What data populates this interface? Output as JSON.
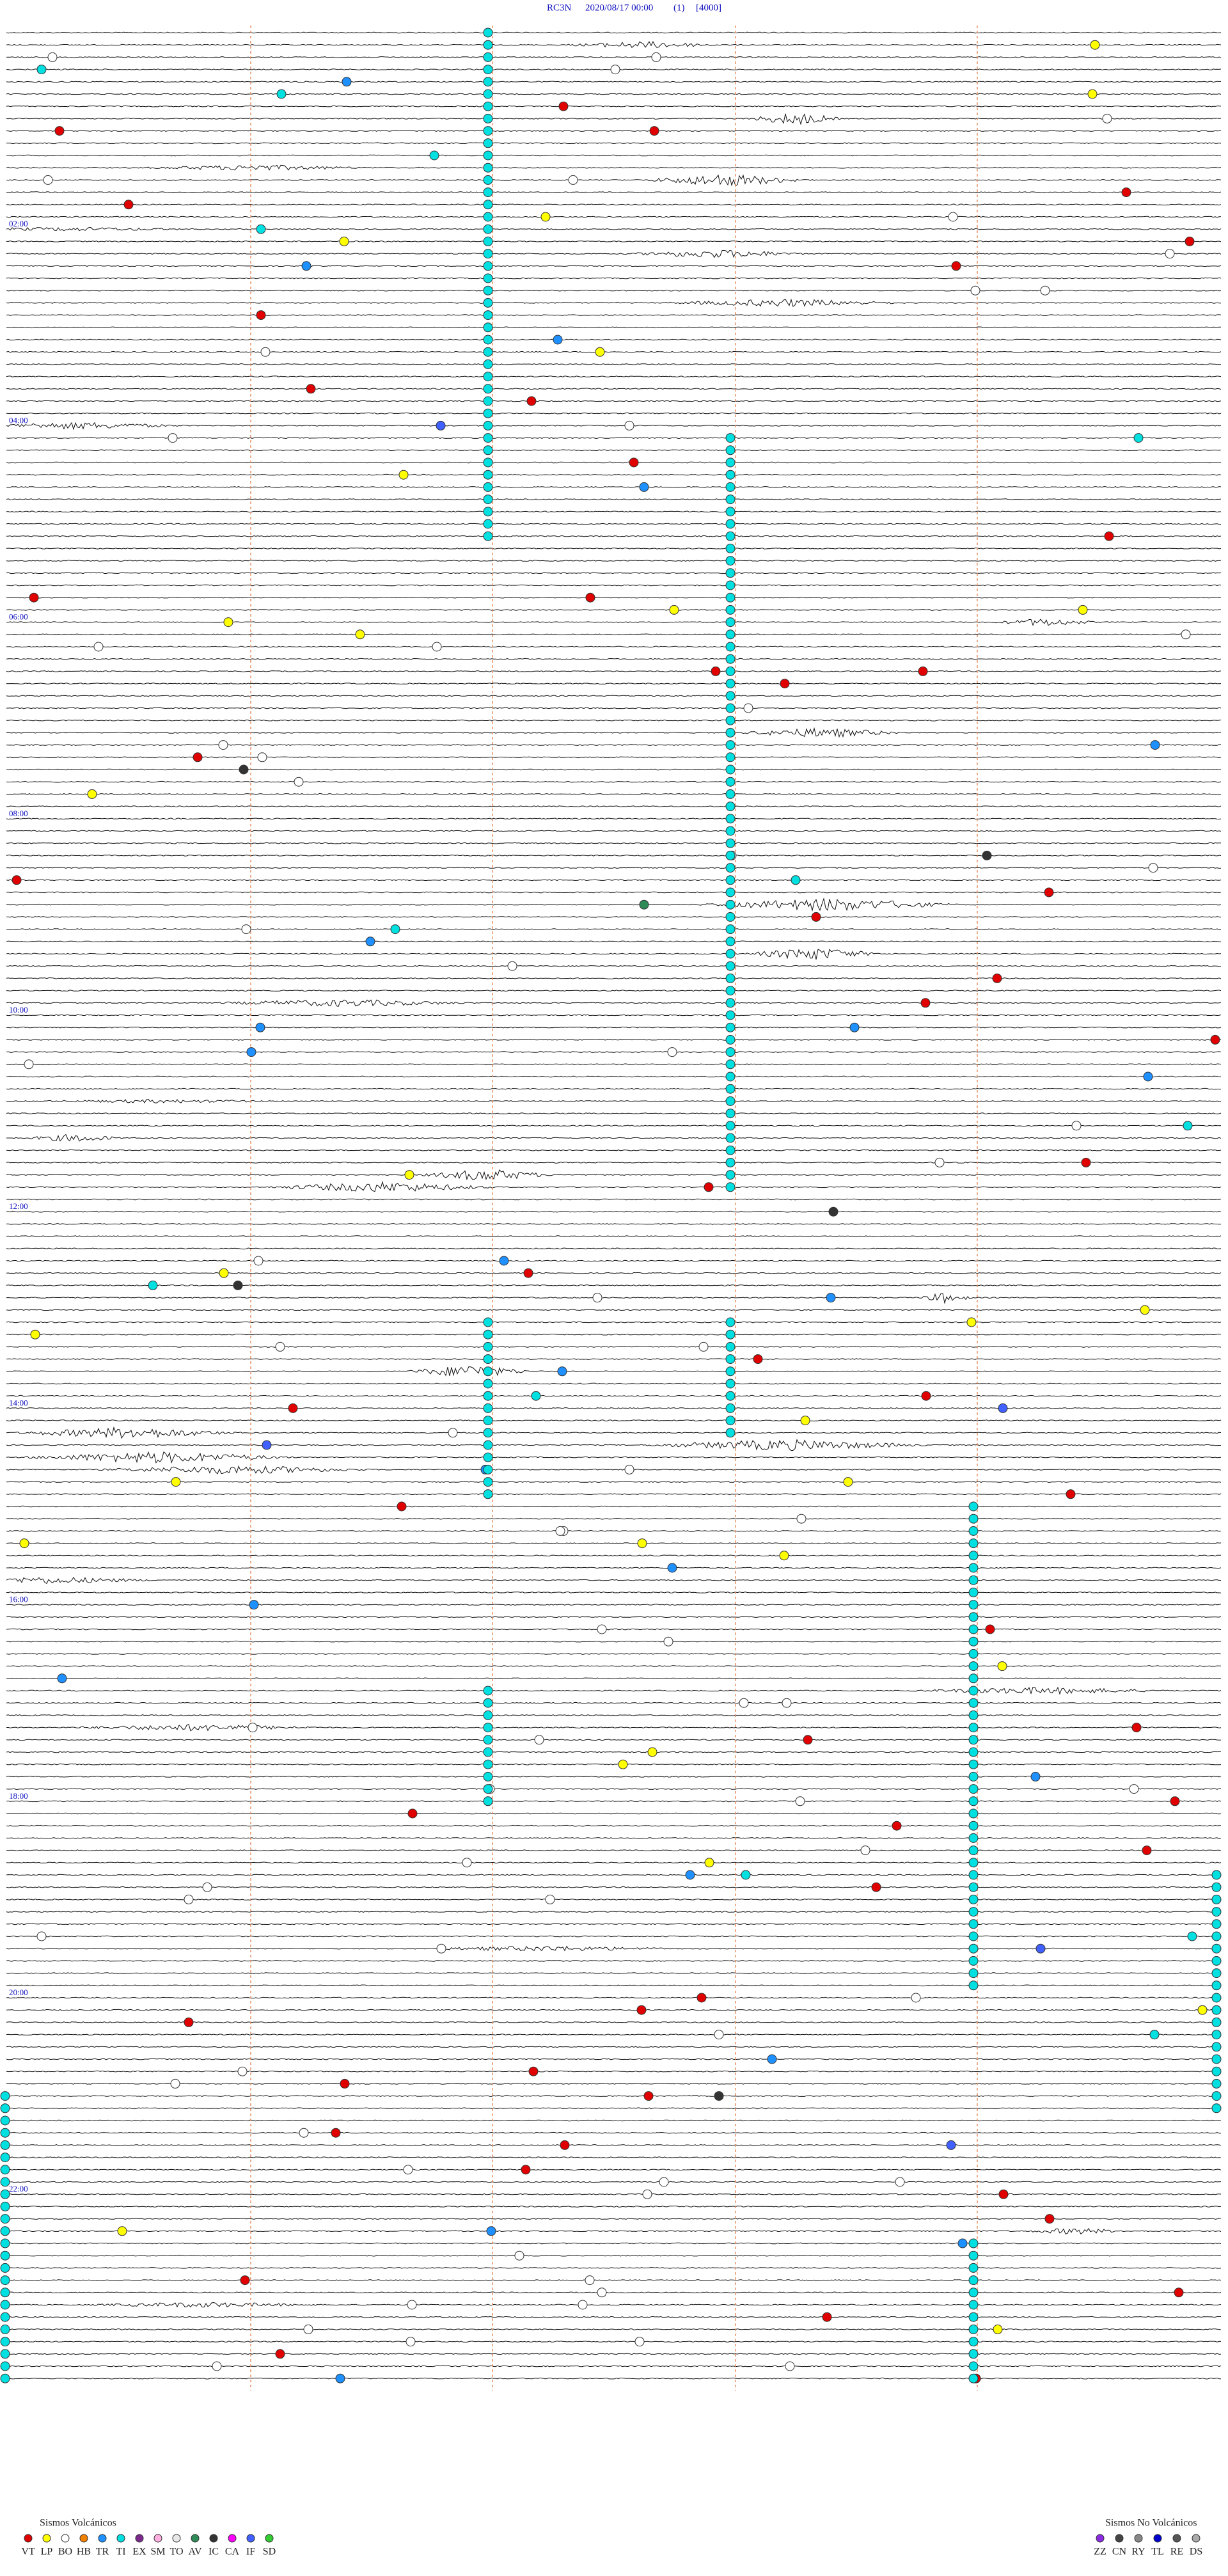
{
  "header": {
    "station": "RC3N",
    "datetime": "2020/08/17 00:00",
    "channel": "(1)",
    "scale": "[4000]"
  },
  "hour_labels": [
    "02:00",
    "04:00",
    "06:00",
    "08:00",
    "10:00",
    "12:00",
    "14:00",
    "16:00",
    "18:00",
    "20:00",
    "22:00"
  ],
  "legend": {
    "volcanic": {
      "title": "Sismos Volcánicos",
      "items": [
        {
          "code": "VT",
          "color": "#e00000"
        },
        {
          "code": "LP",
          "color": "#ffff00"
        },
        {
          "code": "BO",
          "color": "#ffffff"
        },
        {
          "code": "HB",
          "color": "#f08000"
        },
        {
          "code": "TR",
          "color": "#1e90ff"
        },
        {
          "code": "TI",
          "color": "#00e0e0"
        },
        {
          "code": "EX",
          "color": "#7b2a8c"
        },
        {
          "code": "SM",
          "color": "#ffb0e0"
        },
        {
          "code": "TO",
          "color": "#e8e8e8"
        },
        {
          "code": "AV",
          "color": "#2e8b57"
        },
        {
          "code": "IC",
          "color": "#333333"
        },
        {
          "code": "CA",
          "color": "#ff00ff"
        },
        {
          "code": "IF",
          "color": "#4060ff"
        },
        {
          "code": "SD",
          "color": "#33cc33"
        }
      ]
    },
    "non_volcanic": {
      "title": "Sismos No Volcánicos",
      "items": [
        {
          "code": "ZZ",
          "color": "#8a2be2"
        },
        {
          "code": "CN",
          "color": "#444444"
        },
        {
          "code": "RY",
          "color": "#888888"
        },
        {
          "code": "TL",
          "color": "#0000cc"
        },
        {
          "code": "RE",
          "color": "#555555"
        },
        {
          "code": "DS",
          "color": "#aaaaaa"
        }
      ]
    }
  }
}
